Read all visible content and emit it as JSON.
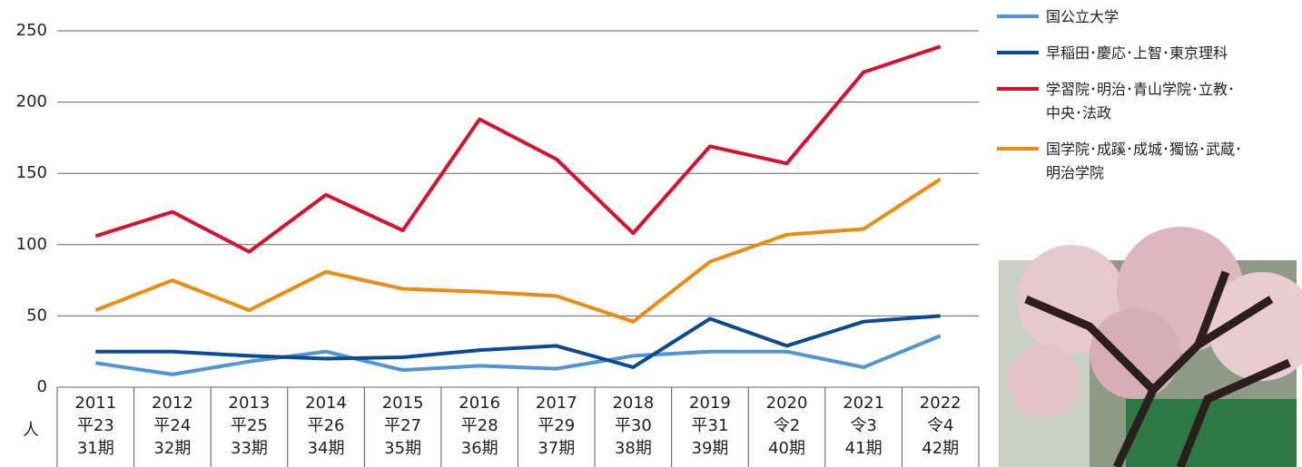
{
  "chart_data": {
    "type": "line",
    "categories": [
      [
        "2011",
        "平23",
        "31期"
      ],
      [
        "2012",
        "平24",
        "32期"
      ],
      [
        "2013",
        "平25",
        "33期"
      ],
      [
        "2014",
        "平26",
        "34期"
      ],
      [
        "2015",
        "平27",
        "35期"
      ],
      [
        "2016",
        "平28",
        "36期"
      ],
      [
        "2017",
        "平29",
        "37期"
      ],
      [
        "2018",
        "平30",
        "38期"
      ],
      [
        "2019",
        "平31",
        "39期"
      ],
      [
        "2020",
        "令2",
        "40期"
      ],
      [
        "2021",
        "令3",
        "41期"
      ],
      [
        "2022",
        "令4",
        "42期"
      ]
    ],
    "y_unit": "人",
    "ylim": [
      0,
      250
    ],
    "yticks": [
      0,
      50,
      100,
      150,
      200,
      250
    ],
    "grid": true,
    "series": [
      {
        "name": "国公立大学",
        "color": "#4e95d4",
        "values": [
          17,
          9,
          18,
          25,
          12,
          15,
          13,
          22,
          25,
          25,
          14,
          36
        ]
      },
      {
        "name": "早稲田･慶応･上智･東京理科",
        "color": "#0a4a94",
        "values": [
          25,
          25,
          22,
          20,
          21,
          26,
          29,
          14,
          48,
          29,
          46,
          50
        ]
      },
      {
        "name": "学習院･明治･青山学院･立教･\n中央･法政",
        "color": "#d8102c",
        "values": [
          106,
          123,
          95,
          135,
          110,
          188,
          160,
          108,
          169,
          157,
          221,
          239
        ]
      },
      {
        "name": "国学院･成蹊･成城･獨協･武蔵･\n明治学院",
        "color": "#ef8a10",
        "values": [
          54,
          75,
          54,
          81,
          69,
          67,
          64,
          46,
          88,
          107,
          111,
          146
        ]
      }
    ]
  }
}
